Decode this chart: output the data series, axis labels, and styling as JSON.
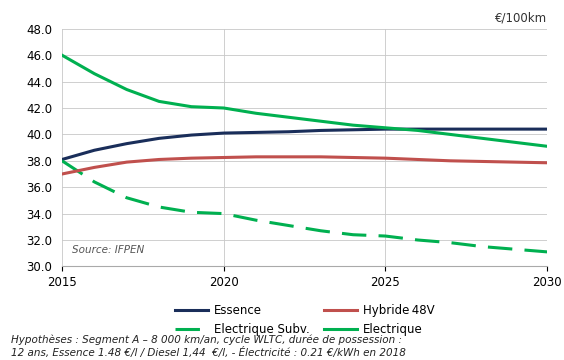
{
  "ylabel": "€/100km",
  "ylim": [
    30.0,
    48.0
  ],
  "yticks": [
    30.0,
    32.0,
    34.0,
    36.0,
    38.0,
    40.0,
    42.0,
    44.0,
    46.0,
    48.0
  ],
  "xlim": [
    2015,
    2030
  ],
  "xticks": [
    2015,
    2020,
    2025,
    2030
  ],
  "series": [
    {
      "name": "Essence",
      "x": [
        2015,
        2016,
        2017,
        2018,
        2019,
        2020,
        2021,
        2022,
        2023,
        2024,
        2025,
        2026,
        2027,
        2028,
        2029,
        2030
      ],
      "y": [
        38.1,
        38.8,
        39.3,
        39.7,
        39.95,
        40.1,
        40.15,
        40.2,
        40.3,
        40.35,
        40.4,
        40.4,
        40.4,
        40.4,
        40.4,
        40.4
      ],
      "color": "#1a2e5a",
      "linestyle": "solid",
      "linewidth": 2.2,
      "dashes": null
    },
    {
      "name": "Electrique Subv.",
      "x": [
        2015,
        2016,
        2017,
        2018,
        2019,
        2020,
        2021,
        2022,
        2023,
        2024,
        2025,
        2026,
        2027,
        2028,
        2029,
        2030
      ],
      "y": [
        38.0,
        36.4,
        35.2,
        34.5,
        34.1,
        34.0,
        33.5,
        33.1,
        32.7,
        32.4,
        32.3,
        32.0,
        31.8,
        31.5,
        31.3,
        31.1
      ],
      "color": "#00b050",
      "linestyle": "dashed",
      "linewidth": 2.2,
      "dashes": [
        8,
        4
      ]
    },
    {
      "name": "Hybride 48V",
      "x": [
        2015,
        2016,
        2017,
        2018,
        2019,
        2020,
        2021,
        2022,
        2023,
        2024,
        2025,
        2026,
        2027,
        2028,
        2029,
        2030
      ],
      "y": [
        37.0,
        37.5,
        37.9,
        38.1,
        38.2,
        38.25,
        38.3,
        38.3,
        38.3,
        38.25,
        38.2,
        38.1,
        38.0,
        37.95,
        37.9,
        37.85
      ],
      "color": "#c0504d",
      "linestyle": "solid",
      "linewidth": 2.2,
      "dashes": null
    },
    {
      "name": "Electrique",
      "x": [
        2015,
        2016,
        2017,
        2018,
        2019,
        2020,
        2021,
        2022,
        2023,
        2024,
        2025,
        2026,
        2027,
        2028,
        2029,
        2030
      ],
      "y": [
        46.0,
        44.6,
        43.4,
        42.5,
        42.1,
        42.0,
        41.6,
        41.3,
        41.0,
        40.7,
        40.5,
        40.3,
        40.0,
        39.7,
        39.4,
        39.1
      ],
      "color": "#00b050",
      "linestyle": "solid",
      "linewidth": 2.2,
      "dashes": null
    }
  ],
  "legend_items": [
    {
      "name": "Essence",
      "color": "#1a2e5a",
      "linestyle": "solid",
      "dashes": null
    },
    {
      "name": "Electrique Subv.",
      "color": "#00b050",
      "linestyle": "dashed",
      "dashes": [
        8,
        4
      ]
    },
    {
      "name": "Hybride 48V",
      "color": "#c0504d",
      "linestyle": "solid",
      "dashes": null
    },
    {
      "name": "Electrique",
      "color": "#00b050",
      "linestyle": "solid",
      "dashes": null
    }
  ],
  "source_text": "Source: IFPEN",
  "footnote_line1": "Hypothèses : Segment A – 8 000 km/an, cycle WLTC, durée de possession :",
  "footnote_line2": "12 ans, Essence 1.48 €/l / Diesel 1,44  €/l, - Électricité : 0.21 €/kWh en 2018",
  "background_color": "#ffffff",
  "grid_color": "#c8c8c8"
}
